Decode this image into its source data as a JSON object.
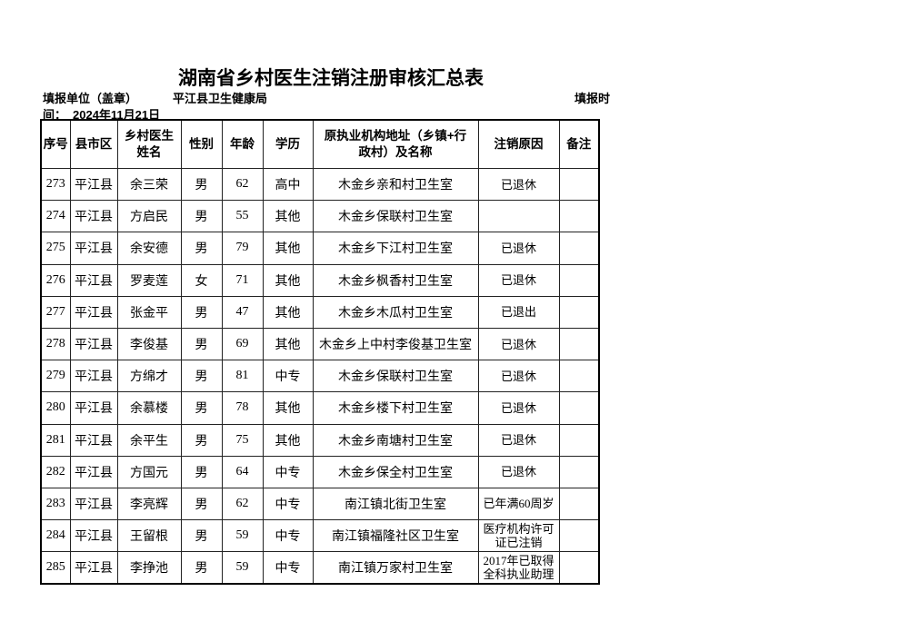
{
  "title": "湖南省乡村医生注销注册审核汇总表",
  "unit_label": "填报单位（盖章）",
  "unit_value": "平江县卫生健康局",
  "date_label_part1": "填报时",
  "date_label_part2": "间：",
  "date_value": "2024年11月21日",
  "columns": [
    "序号",
    "县市区",
    "乡村医生姓名",
    "性别",
    "年龄",
    "学历",
    "原执业机构地址（乡镇+行政村）及名称",
    "注销原因",
    "备注"
  ],
  "rows": [
    [
      "273",
      "平江县",
      "余三荣",
      "男",
      "62",
      "高中",
      "木金乡亲和村卫生室",
      "已退休",
      ""
    ],
    [
      "274",
      "平江县",
      "方启民",
      "男",
      "55",
      "其他",
      "木金乡保联村卫生室",
      "",
      ""
    ],
    [
      "275",
      "平江县",
      "余安德",
      "男",
      "79",
      "其他",
      "木金乡下江村卫生室",
      "已退休",
      ""
    ],
    [
      "276",
      "平江县",
      "罗麦莲",
      "女",
      "71",
      "其他",
      "木金乡枫香村卫生室",
      "已退休",
      ""
    ],
    [
      "277",
      "平江县",
      "张金平",
      "男",
      "47",
      "其他",
      "木金乡木瓜村卫生室",
      "已退出",
      ""
    ],
    [
      "278",
      "平江县",
      "李俊基",
      "男",
      "69",
      "其他",
      "木金乡上中村李俊基卫生室",
      "已退休",
      ""
    ],
    [
      "279",
      "平江县",
      "方绵才",
      "男",
      "81",
      "中专",
      "木金乡保联村卫生室",
      "已退休",
      ""
    ],
    [
      "280",
      "平江县",
      "余慕楼",
      "男",
      "78",
      "其他",
      "木金乡楼下村卫生室",
      "已退休",
      ""
    ],
    [
      "281",
      "平江县",
      "余平生",
      "男",
      "75",
      "其他",
      "木金乡南塘村卫生室",
      "已退休",
      ""
    ],
    [
      "282",
      "平江县",
      "方国元",
      "男",
      "64",
      "中专",
      "木金乡保全村卫生室",
      "已退休",
      ""
    ],
    [
      "283",
      "平江县",
      "李亮辉",
      "男",
      "62",
      "中专",
      "南江镇北街卫生室",
      "已年满60周岁",
      ""
    ],
    [
      "284",
      "平江县",
      "王留根",
      "男",
      "59",
      "中专",
      "南江镇福隆社区卫生室",
      "医疗机构许可证已注销",
      ""
    ],
    [
      "285",
      "平江县",
      "李挣池",
      "男",
      "59",
      "中专",
      "南江镇万家村卫生室",
      "2017年已取得全科执业助理",
      ""
    ]
  ]
}
